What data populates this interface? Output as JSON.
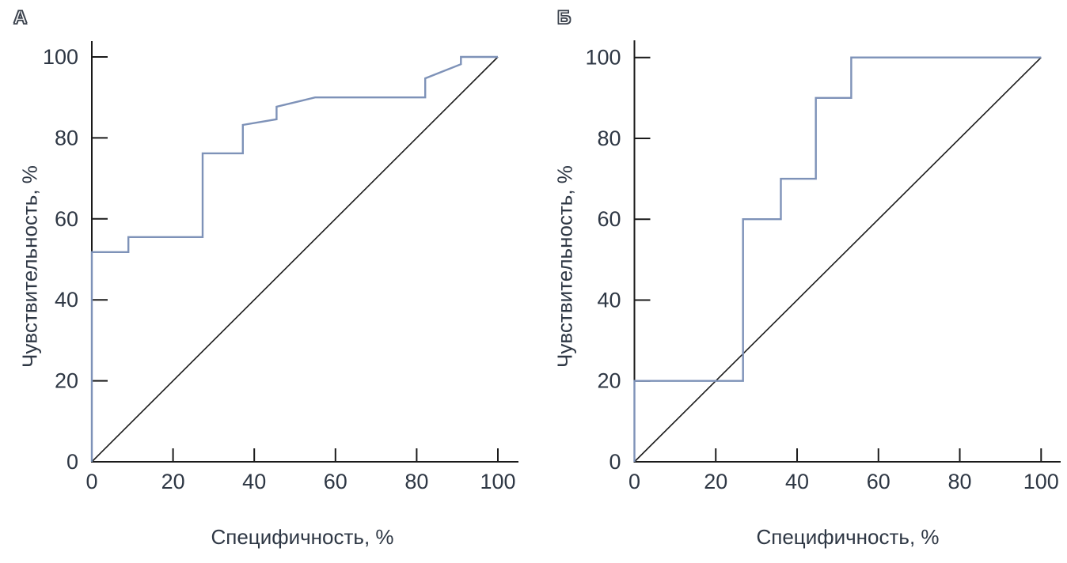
{
  "figure": {
    "background": "#ffffff",
    "panels": [
      {
        "label": "А",
        "xlabel": "Специфичность, %",
        "ylabel": "Чувствительность, %"
      },
      {
        "label": "Б",
        "xlabel": "Специфичность, %",
        "ylabel": "Чувствительность, %"
      }
    ]
  },
  "chart_data": [
    {
      "type": "line",
      "panel": "А",
      "title": "А",
      "xlabel": "Специфичность, %",
      "ylabel": "Чувствительность, %",
      "xlim": [
        0,
        100
      ],
      "ylim": [
        0,
        100
      ],
      "x_ticks": [
        0,
        20,
        40,
        60,
        80,
        100
      ],
      "y_ticks": [
        0,
        20,
        40,
        60,
        80,
        100
      ],
      "grid": false,
      "legend_position": "none",
      "series": [
        {
          "name": "ROC curve",
          "color": "#7e92b8",
          "width": 2.4,
          "points": [
            [
              0,
              0
            ],
            [
              0,
              51.8
            ],
            [
              9,
              51.8
            ],
            [
              9,
              55.5
            ],
            [
              27.3,
              55.5
            ],
            [
              27.3,
              76.2
            ],
            [
              37.2,
              76.2
            ],
            [
              37.2,
              83.2
            ],
            [
              45.5,
              84.6
            ],
            [
              45.5,
              87.7
            ],
            [
              55,
              90
            ],
            [
              82.1,
              90
            ],
            [
              82.1,
              94.7
            ],
            [
              90.9,
              98.2
            ],
            [
              90.9,
              100
            ],
            [
              100,
              100
            ]
          ]
        },
        {
          "name": "Reference diagonal",
          "color": "#1b1b1b",
          "width": 1.6,
          "points": [
            [
              0,
              0
            ],
            [
              100,
              100
            ]
          ]
        }
      ]
    },
    {
      "type": "line",
      "panel": "Б",
      "title": "Б",
      "xlabel": "Специфичность, %",
      "ylabel": "Чувствительность, %",
      "xlim": [
        0,
        100
      ],
      "ylim": [
        0,
        100
      ],
      "x_ticks": [
        0,
        20,
        40,
        60,
        80,
        100
      ],
      "y_ticks": [
        0,
        20,
        40,
        60,
        80,
        100
      ],
      "grid": false,
      "legend_position": "none",
      "series": [
        {
          "name": "ROC curve",
          "color": "#7e92b8",
          "width": 2.4,
          "points": [
            [
              0,
              0
            ],
            [
              0,
              20
            ],
            [
              26.7,
              20
            ],
            [
              26.7,
              60
            ],
            [
              36,
              60
            ],
            [
              36,
              70
            ],
            [
              44.6,
              70
            ],
            [
              44.6,
              90
            ],
            [
              53.3,
              90
            ],
            [
              53.3,
              100
            ],
            [
              100,
              100
            ]
          ]
        },
        {
          "name": "Reference diagonal",
          "color": "#1b1b1b",
          "width": 1.6,
          "points": [
            [
              0,
              0
            ],
            [
              100,
              100
            ]
          ]
        }
      ]
    }
  ],
  "colors": {
    "axis": "#1a1a1a",
    "text": "#2e3744",
    "curve": "#7e92b8",
    "panel_letter_fill": "#ffffff",
    "panel_letter_outline": "#3c434e"
  }
}
